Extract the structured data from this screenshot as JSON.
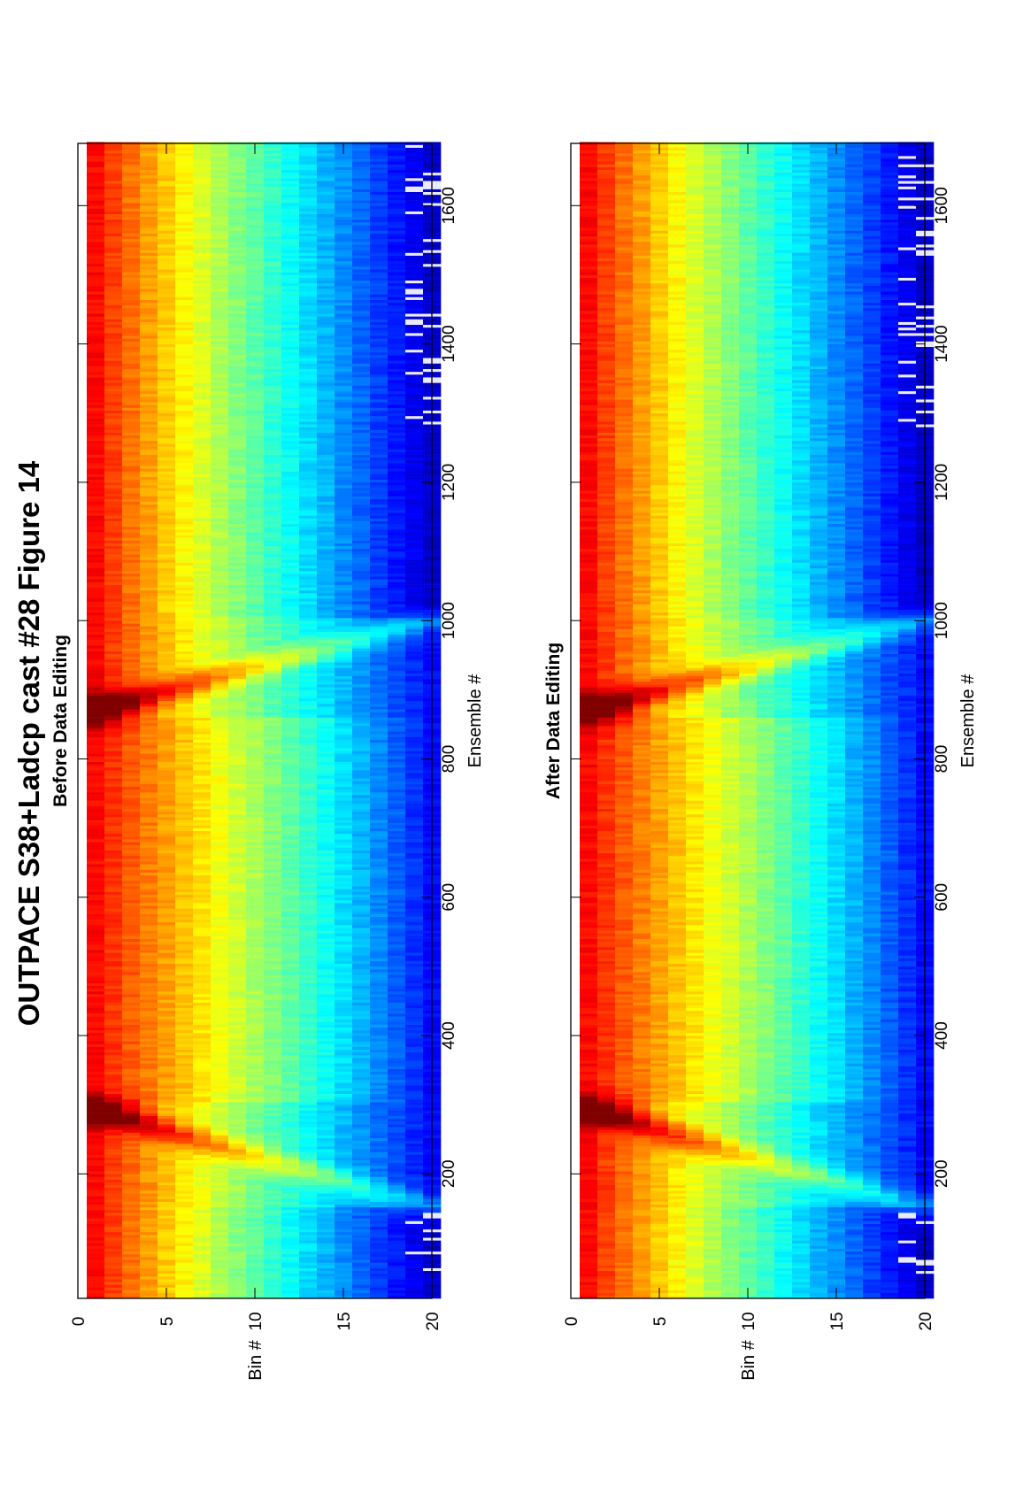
{
  "figure": {
    "title": "OUTPACE S38+Ladcp cast #28  Figure 14"
  },
  "chart_data": [
    {
      "type": "heatmap",
      "title": "Before Data Editing",
      "xlabel": "Ensemble #",
      "ylabel": "Bin #",
      "xlim": [
        20,
        1690
      ],
      "ylim": [
        0,
        20
      ],
      "y_reversed": true,
      "x_ticks": [
        200,
        400,
        600,
        800,
        1000,
        1200,
        1400,
        1600
      ],
      "y_ticks": [
        0,
        5,
        10,
        15,
        20
      ],
      "colormap": "jet",
      "cell_height_bins": 1,
      "bins": [
        1,
        2,
        3,
        4,
        5,
        6,
        7,
        8,
        9,
        10,
        11,
        12,
        13,
        14,
        15,
        16,
        17,
        18,
        19,
        20
      ],
      "description_values": {
        "surface_intensity_ensembles": [
          20,
          1690
        ],
        "peak_intensity_ensembles": [
          290,
          870
        ],
        "bottom_front_ensembles": [
          [
            150,
            290
          ],
          [
            870,
            1000
          ]
        ],
        "noise_ensembles": [
          [
            40,
            140
          ],
          [
            1280,
            1690
          ]
        ]
      }
    },
    {
      "type": "heatmap",
      "title": "After Data Editing",
      "xlabel": "Ensemble #",
      "ylabel": "Bin #",
      "xlim": [
        20,
        1690
      ],
      "ylim": [
        0,
        20
      ],
      "y_reversed": true,
      "x_ticks": [
        200,
        400,
        600,
        800,
        1000,
        1200,
        1400,
        1600
      ],
      "y_ticks": [
        0,
        5,
        10,
        15,
        20
      ],
      "colormap": "jet",
      "cell_height_bins": 1,
      "bins": [
        1,
        2,
        3,
        4,
        5,
        6,
        7,
        8,
        9,
        10,
        11,
        12,
        13,
        14,
        15,
        16,
        17,
        18,
        19,
        20
      ],
      "description_values": {
        "surface_intensity_ensembles": [
          20,
          1690
        ],
        "peak_intensity_ensembles": [
          290,
          870
        ],
        "bottom_front_ensembles": [
          [
            150,
            290
          ],
          [
            870,
            1000
          ]
        ],
        "noise_ensembles": [
          [
            40,
            140
          ],
          [
            1280,
            1690
          ]
        ]
      }
    }
  ]
}
